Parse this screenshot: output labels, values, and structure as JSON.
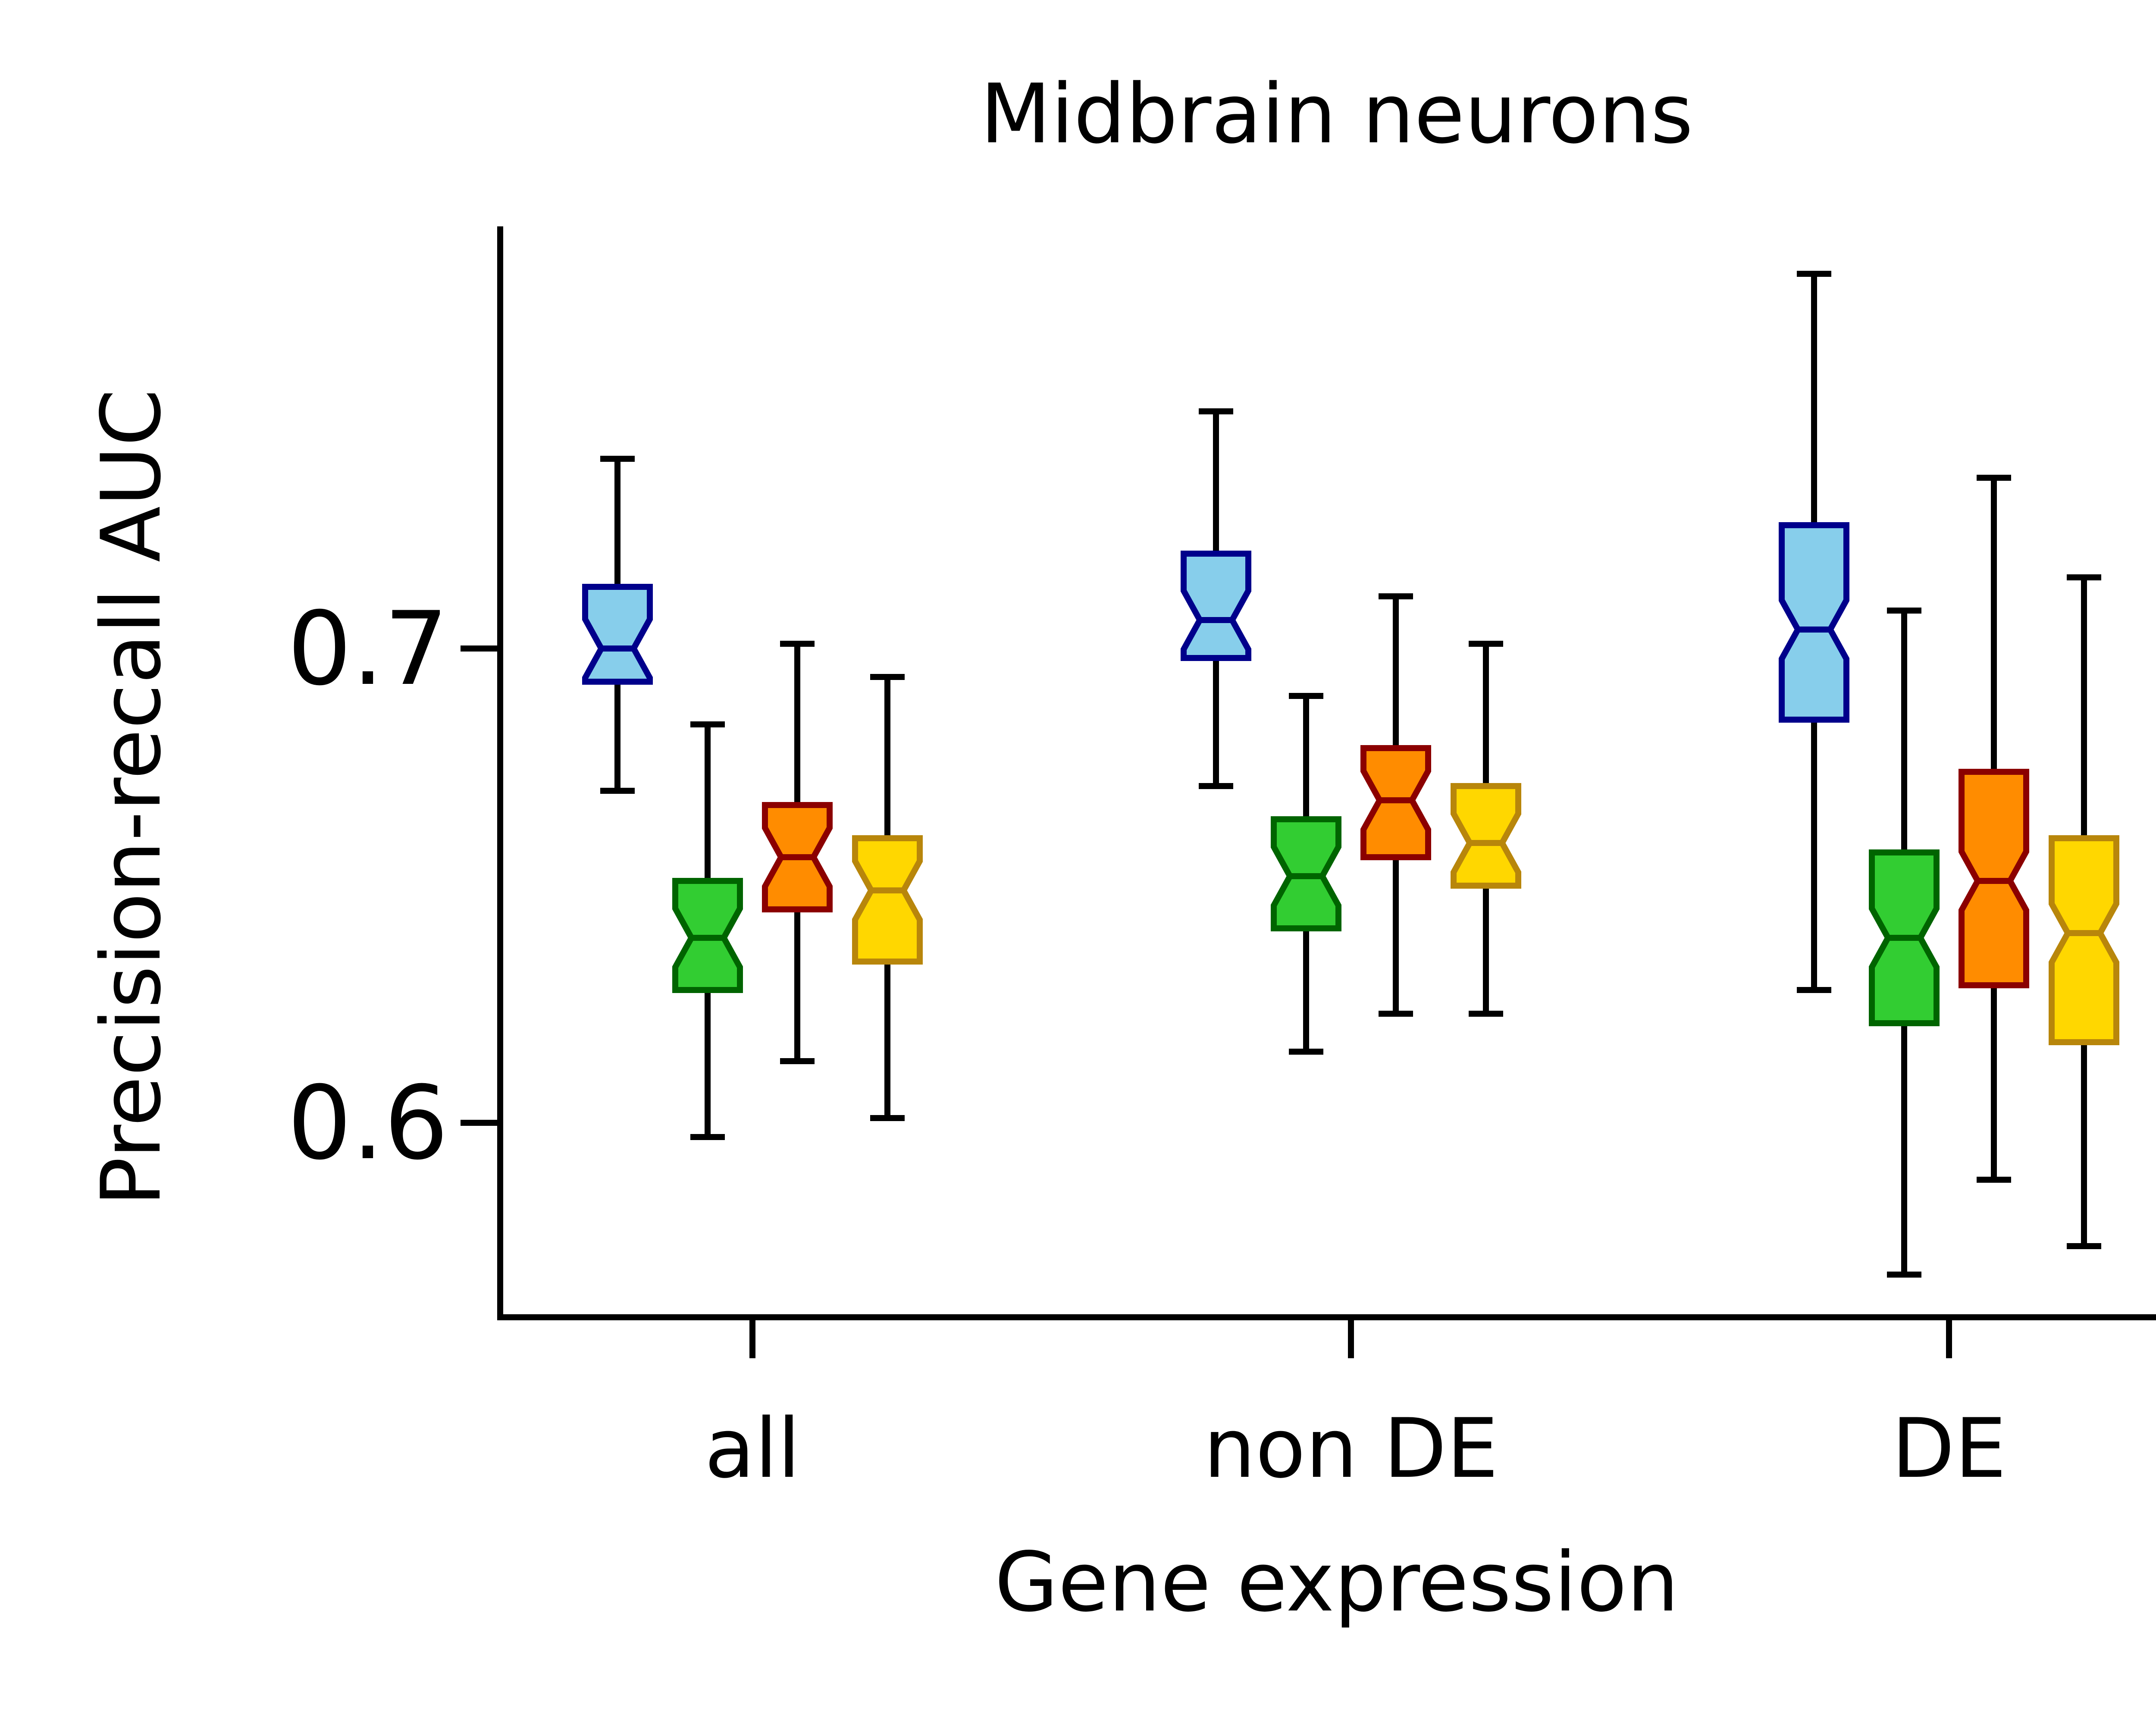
{
  "chart_data": {
    "type": "boxplot",
    "title": "Midbrain neurons",
    "xlabel": "Gene expression",
    "ylabel": "Precision-recall AUC",
    "categories": [
      "all",
      "non DE",
      "DE"
    ],
    "yticks": [
      0.6,
      0.7
    ],
    "ylim": [
      0.559,
      0.789
    ],
    "notched": true,
    "grid": false,
    "series": [
      {
        "fill": "#87CEEB",
        "edge": "#00008B",
        "boxes": [
          {
            "whislo": 0.67,
            "q1": 0.693,
            "med": 0.7,
            "q3": 0.713,
            "whishi": 0.74
          },
          {
            "whislo": 0.671,
            "q1": 0.698,
            "med": 0.706,
            "q3": 0.72,
            "whishi": 0.75
          },
          {
            "whislo": 0.628,
            "q1": 0.685,
            "med": 0.704,
            "q3": 0.726,
            "whishi": 0.779
          }
        ]
      },
      {
        "fill": "#32CD32",
        "edge": "#006400",
        "boxes": [
          {
            "whislo": 0.597,
            "q1": 0.628,
            "med": 0.639,
            "q3": 0.651,
            "whishi": 0.684
          },
          {
            "whislo": 0.615,
            "q1": 0.641,
            "med": 0.652,
            "q3": 0.664,
            "whishi": 0.69
          },
          {
            "whislo": 0.568,
            "q1": 0.621,
            "med": 0.639,
            "q3": 0.657,
            "whishi": 0.708
          }
        ]
      },
      {
        "fill": "#FF8C00",
        "edge": "#8B0000",
        "boxes": [
          {
            "whislo": 0.613,
            "q1": 0.645,
            "med": 0.656,
            "q3": 0.667,
            "whishi": 0.701
          },
          {
            "whislo": 0.623,
            "q1": 0.656,
            "med": 0.668,
            "q3": 0.679,
            "whishi": 0.711
          },
          {
            "whislo": 0.588,
            "q1": 0.629,
            "med": 0.651,
            "q3": 0.674,
            "whishi": 0.736
          }
        ]
      },
      {
        "fill": "#FFD700",
        "edge": "#B8860B",
        "boxes": [
          {
            "whislo": 0.601,
            "q1": 0.634,
            "med": 0.649,
            "q3": 0.66,
            "whishi": 0.694
          },
          {
            "whislo": 0.623,
            "q1": 0.65,
            "med": 0.659,
            "q3": 0.671,
            "whishi": 0.701
          },
          {
            "whislo": 0.574,
            "q1": 0.617,
            "med": 0.64,
            "q3": 0.66,
            "whishi": 0.715
          }
        ]
      }
    ]
  }
}
